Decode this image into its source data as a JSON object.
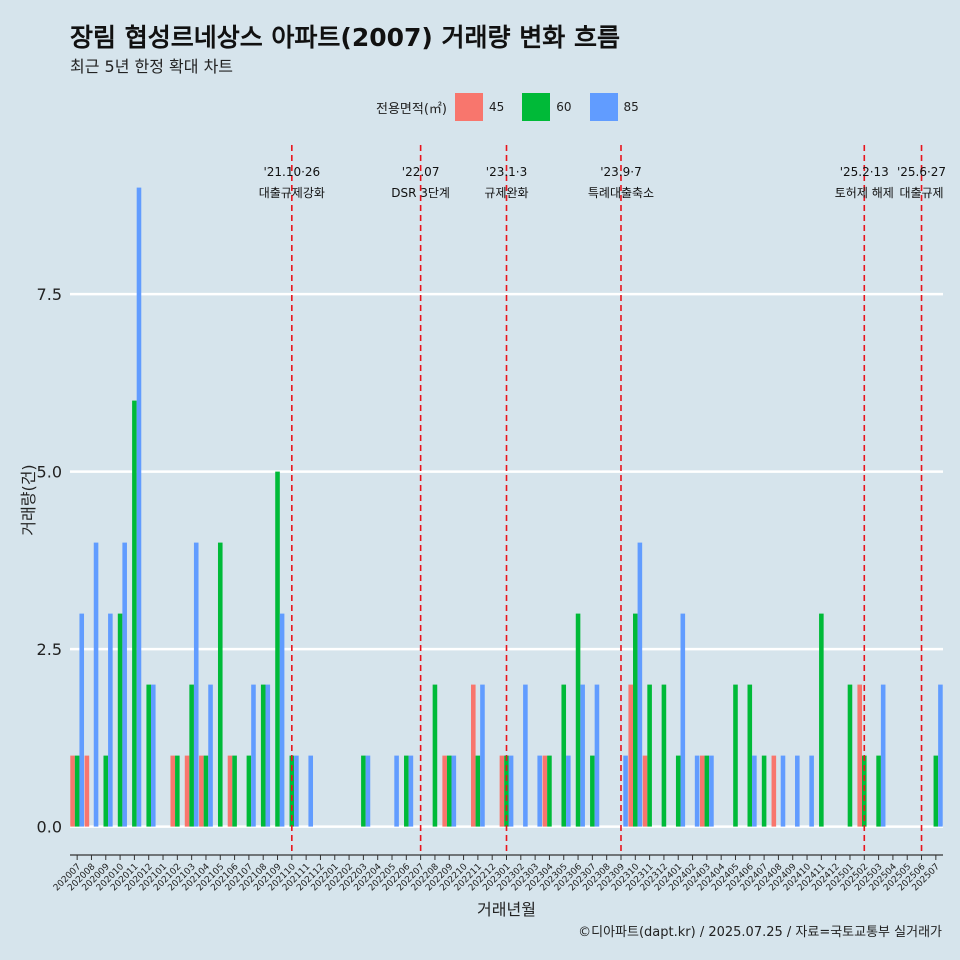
{
  "header": {
    "title": "장림 협성르네상스 아파트(2007) 거래량 변화 흐름",
    "subtitle": "최근 5년 한정 확대 차트"
  },
  "legend": {
    "title": "전용면적(㎡)",
    "items": [
      {
        "label": "45",
        "color": "#f8766d"
      },
      {
        "label": "60",
        "color": "#00ba38"
      },
      {
        "label": "85",
        "color": "#619cff"
      }
    ]
  },
  "caption": "©디아파트(dapt.kr) / 2025.07.25 / 자료=국토교통부 실거래가",
  "chart_data": {
    "type": "bar",
    "xlabel": "거래년월",
    "ylabel": "거래량(건)",
    "ylim": [
      -0.4,
      9.6
    ],
    "yticks": [
      0.0,
      2.5,
      5.0,
      7.5
    ],
    "ytick_labels": [
      "0.0",
      "2.5",
      "5.0",
      "7.5"
    ],
    "grid": true,
    "categories": [
      "202007",
      "202008",
      "202009",
      "202010",
      "202011",
      "202012",
      "202101",
      "202102",
      "202103",
      "202104",
      "202105",
      "202106",
      "202107",
      "202108",
      "202109",
      "202110",
      "202111",
      "202112",
      "202201",
      "202202",
      "202203",
      "202204",
      "202205",
      "202206",
      "202207",
      "202208",
      "202209",
      "202210",
      "202211",
      "202212",
      "202301",
      "202302",
      "202303",
      "202304",
      "202305",
      "202306",
      "202307",
      "202308",
      "202309",
      "202310",
      "202311",
      "202312",
      "202401",
      "202402",
      "202403",
      "202404",
      "202405",
      "202406",
      "202407",
      "202408",
      "202409",
      "202410",
      "202411",
      "202412",
      "202501",
      "202502",
      "202503",
      "202504",
      "202505",
      "202506",
      "202507"
    ],
    "series": [
      {
        "name": "45",
        "color": "#f8766d",
        "values": [
          1,
          1,
          0,
          0,
          0,
          0,
          0,
          1,
          1,
          1,
          0,
          1,
          0,
          0,
          0,
          0,
          0,
          0,
          0,
          0,
          0,
          0,
          0,
          0,
          0,
          0,
          1,
          0,
          2,
          0,
          1,
          0,
          0,
          1,
          0,
          0,
          0,
          0,
          0,
          2,
          1,
          0,
          0,
          0,
          1,
          0,
          0,
          0,
          0,
          1,
          0,
          0,
          0,
          0,
          0,
          2,
          0,
          0,
          0,
          0,
          0
        ]
      },
      {
        "name": "60",
        "color": "#00ba38",
        "values": [
          1,
          0,
          1,
          3,
          6,
          2,
          0,
          1,
          2,
          1,
          4,
          1,
          1,
          2,
          5,
          1,
          0,
          0,
          0,
          0,
          1,
          0,
          0,
          1,
          0,
          2,
          1,
          0,
          1,
          0,
          1,
          0,
          0,
          1,
          2,
          3,
          1,
          0,
          0,
          3,
          2,
          2,
          1,
          0,
          1,
          0,
          2,
          2,
          1,
          0,
          0,
          0,
          3,
          0,
          2,
          1,
          1,
          0,
          0,
          0,
          1
        ]
      },
      {
        "name": "85",
        "color": "#619cff",
        "values": [
          3,
          4,
          3,
          4,
          9,
          2,
          0,
          0,
          4,
          2,
          0,
          0,
          2,
          2,
          3,
          1,
          1,
          0,
          0,
          0,
          1,
          0,
          1,
          1,
          0,
          0,
          1,
          0,
          2,
          0,
          1,
          2,
          1,
          0,
          1,
          2,
          2,
          0,
          1,
          4,
          0,
          0,
          3,
          1,
          1,
          0,
          0,
          1,
          0,
          1,
          1,
          1,
          0,
          0,
          0,
          0,
          2,
          0,
          0,
          0,
          2
        ]
      }
    ],
    "annotations": [
      {
        "month": "202110",
        "date": "'21.10·26",
        "label": "대출규제강화"
      },
      {
        "month": "202207",
        "date": "'22.07",
        "label": "DSR 3단계"
      },
      {
        "month": "202301",
        "date": "'23.1·3",
        "label": "규제완화"
      },
      {
        "month": "202309",
        "date": "'23.9·7",
        "label": "특례대출축소"
      },
      {
        "month": "202502",
        "date": "'25.2·13",
        "label": "토허제 해제"
      },
      {
        "month": "202506",
        "date": "'25.6·27",
        "label": "대출규제"
      }
    ]
  }
}
